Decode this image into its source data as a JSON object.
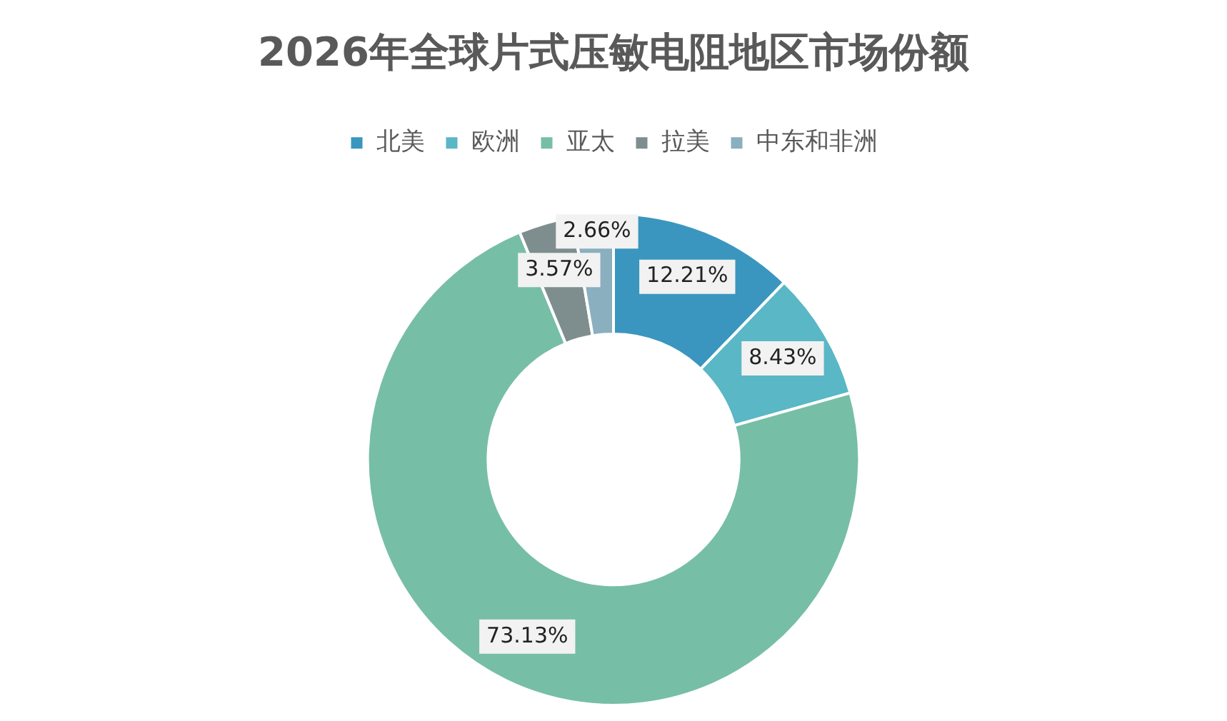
{
  "chart_data": {
    "type": "donut",
    "title": "2026年全球片式压敏电阻地区市场份额",
    "categories": [
      "北美",
      "欧洲",
      "亚太",
      "拉美",
      "中东和非洲"
    ],
    "values": [
      12.21,
      8.43,
      73.13,
      3.57,
      2.66
    ],
    "colors": [
      "#3a96be",
      "#5ab7c5",
      "#77bea7",
      "#7e8e8f",
      "#8aafbf"
    ],
    "value_labels": [
      "12.21%",
      "8.43%",
      "73.13%",
      "3.57%",
      "2.66%"
    ],
    "legend": "top"
  }
}
